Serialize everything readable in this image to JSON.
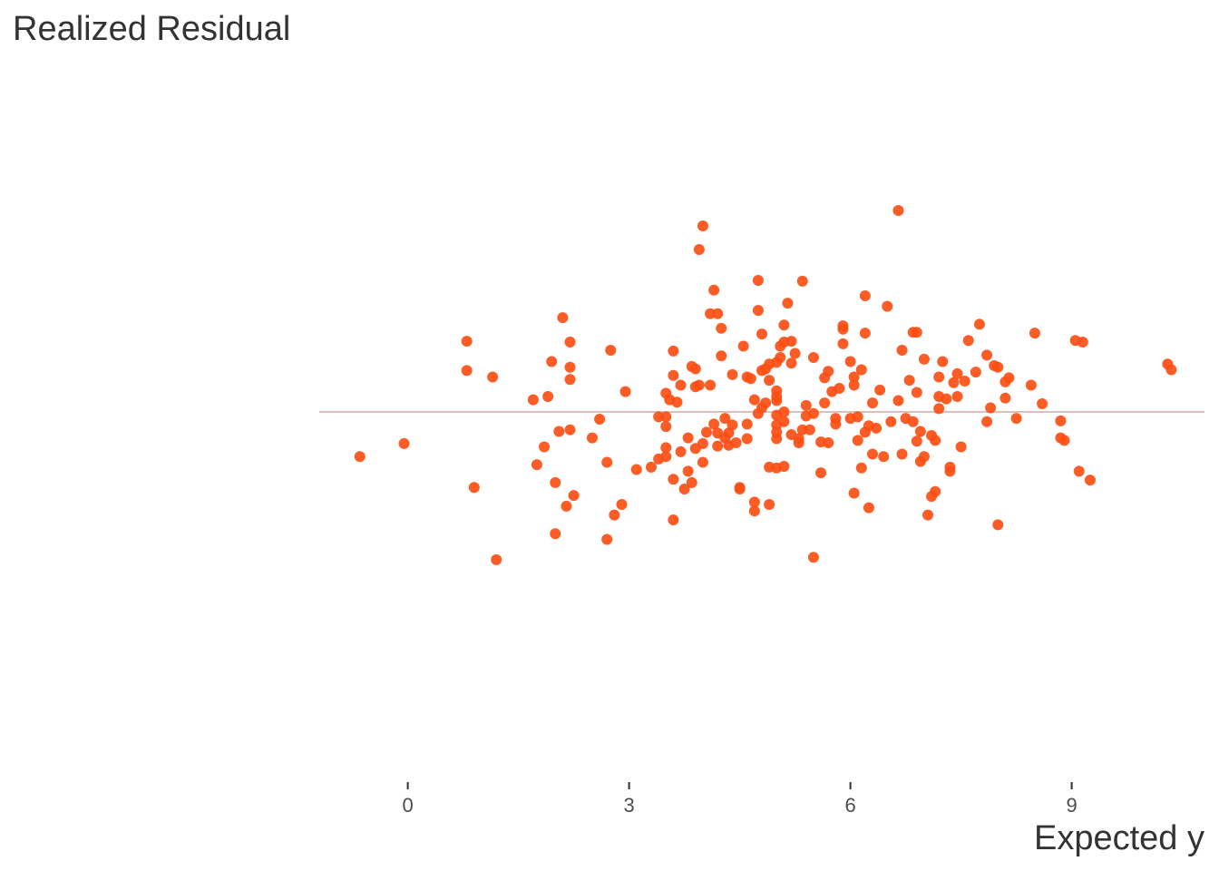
{
  "chart_data": {
    "type": "scatter",
    "title": "Realized Residual",
    "xlabel": "Expected y",
    "ylabel": "Realized Residual",
    "x_ticks": [
      0,
      3,
      6,
      9
    ],
    "xlim": [
      -1.2,
      10.8
    ],
    "ylim": [
      -4.0,
      4.0
    ],
    "y_ticks_visible": false,
    "grid": false,
    "reference_line": {
      "y": 0,
      "color": "#dbbfbf"
    },
    "point_color": "#fc4e14",
    "points": [
      [
        -0.65,
        -0.55
      ],
      [
        -0.05,
        -0.39
      ],
      [
        0.8,
        0.87
      ],
      [
        0.8,
        0.51
      ],
      [
        0.9,
        -0.93
      ],
      [
        1.15,
        0.43
      ],
      [
        1.2,
        -1.82
      ],
      [
        1.7,
        0.15
      ],
      [
        1.75,
        -0.65
      ],
      [
        1.85,
        -0.43
      ],
      [
        1.9,
        0.19
      ],
      [
        1.95,
        0.62
      ],
      [
        2.0,
        -0.87
      ],
      [
        2.0,
        -1.5
      ],
      [
        2.05,
        -0.24
      ],
      [
        2.1,
        1.16
      ],
      [
        2.15,
        -1.16
      ],
      [
        2.2,
        0.86
      ],
      [
        2.2,
        0.55
      ],
      [
        2.2,
        0.4
      ],
      [
        2.2,
        -0.22
      ],
      [
        2.25,
        -1.03
      ],
      [
        2.5,
        -0.32
      ],
      [
        2.6,
        -0.09
      ],
      [
        2.7,
        -1.57
      ],
      [
        2.7,
        -0.62
      ],
      [
        2.75,
        0.76
      ],
      [
        2.8,
        -1.27
      ],
      [
        2.9,
        -1.14
      ],
      [
        2.95,
        0.25
      ],
      [
        3.1,
        -0.71
      ],
      [
        3.3,
        -0.68
      ],
      [
        3.4,
        -0.58
      ],
      [
        3.4,
        -0.06
      ],
      [
        3.5,
        0.23
      ],
      [
        3.5,
        -0.06
      ],
      [
        3.5,
        -0.18
      ],
      [
        3.5,
        -0.44
      ],
      [
        3.5,
        -0.55
      ],
      [
        3.55,
        0.15
      ],
      [
        3.6,
        0.75
      ],
      [
        3.6,
        -0.83
      ],
      [
        3.6,
        0.45
      ],
      [
        3.6,
        -1.33
      ],
      [
        3.65,
        0.12
      ],
      [
        3.7,
        0.33
      ],
      [
        3.7,
        -0.49
      ],
      [
        3.75,
        -0.95
      ],
      [
        3.8,
        -0.32
      ],
      [
        3.8,
        -0.73
      ],
      [
        3.85,
        0.56
      ],
      [
        3.85,
        -0.87
      ],
      [
        3.9,
        0.31
      ],
      [
        3.9,
        0.53
      ],
      [
        3.9,
        -0.45
      ],
      [
        3.95,
        2.0
      ],
      [
        3.95,
        0.33
      ],
      [
        4.0,
        -0.39
      ],
      [
        4.0,
        -0.62
      ],
      [
        4.0,
        2.29
      ],
      [
        4.05,
        -0.25
      ],
      [
        4.1,
        0.33
      ],
      [
        4.1,
        1.21
      ],
      [
        4.15,
        -0.15
      ],
      [
        4.15,
        1.5
      ],
      [
        4.2,
        -0.42
      ],
      [
        4.2,
        1.21
      ],
      [
        4.2,
        -0.26
      ],
      [
        4.25,
        1.03
      ],
      [
        4.25,
        0.69
      ],
      [
        4.3,
        -0.08
      ],
      [
        4.3,
        -0.32
      ],
      [
        4.35,
        -0.26
      ],
      [
        4.35,
        -0.41
      ],
      [
        4.4,
        -0.16
      ],
      [
        4.4,
        0.46
      ],
      [
        4.45,
        -0.38
      ],
      [
        4.5,
        -0.93
      ],
      [
        4.5,
        -0.95
      ],
      [
        4.55,
        0.81
      ],
      [
        4.6,
        -0.15
      ],
      [
        4.6,
        -0.33
      ],
      [
        4.6,
        0.43
      ],
      [
        4.65,
        0.41
      ],
      [
        4.7,
        0.15
      ],
      [
        4.75,
        -0.02
      ],
      [
        4.7,
        -1.11
      ],
      [
        4.7,
        -1.22
      ],
      [
        4.75,
        1.25
      ],
      [
        4.75,
        1.62
      ],
      [
        4.8,
        0.96
      ],
      [
        4.8,
        0.51
      ],
      [
        4.8,
        0.05
      ],
      [
        4.85,
        0.53
      ],
      [
        4.85,
        0.11
      ],
      [
        4.9,
        0.59
      ],
      [
        4.9,
        0.39
      ],
      [
        4.9,
        -0.68
      ],
      [
        4.9,
        -1.14
      ],
      [
        5.0,
        0.61
      ],
      [
        5.0,
        0.14
      ],
      [
        5.0,
        0.26
      ],
      [
        5.0,
        0.19
      ],
      [
        5.0,
        -0.04
      ],
      [
        5.0,
        -0.16
      ],
      [
        5.0,
        -0.25
      ],
      [
        5.0,
        -0.33
      ],
      [
        5.0,
        -0.69
      ],
      [
        5.05,
        0.67
      ],
      [
        5.05,
        0.81
      ],
      [
        5.1,
        0.86
      ],
      [
        5.1,
        0.0
      ],
      [
        5.1,
        -0.12
      ],
      [
        5.1,
        -0.67
      ],
      [
        5.1,
        1.07
      ],
      [
        5.15,
        1.34
      ],
      [
        5.2,
        0.87
      ],
      [
        5.2,
        0.6
      ],
      [
        5.2,
        -0.28
      ],
      [
        5.25,
        0.72
      ],
      [
        5.3,
        -0.33
      ],
      [
        5.3,
        -0.38
      ],
      [
        5.35,
        -0.22
      ],
      [
        5.35,
        1.61
      ],
      [
        5.4,
        0.08
      ],
      [
        5.4,
        -0.05
      ],
      [
        5.45,
        -0.22
      ],
      [
        5.5,
        0.67
      ],
      [
        5.5,
        -0.02
      ],
      [
        5.5,
        -1.79
      ],
      [
        5.6,
        -0.37
      ],
      [
        5.6,
        -0.75
      ],
      [
        5.65,
        0.42
      ],
      [
        5.65,
        0.11
      ],
      [
        5.7,
        0.5
      ],
      [
        5.7,
        -0.38
      ],
      [
        5.75,
        0.25
      ],
      [
        5.8,
        -0.08
      ],
      [
        5.8,
        -0.15
      ],
      [
        5.85,
        0.29
      ],
      [
        5.9,
        1.06
      ],
      [
        5.9,
        1.02
      ],
      [
        5.9,
        0.84
      ],
      [
        6.0,
        0.62
      ],
      [
        6.0,
        -0.08
      ],
      [
        6.05,
        0.33
      ],
      [
        6.05,
        0.43
      ],
      [
        6.05,
        -1.0
      ],
      [
        6.1,
        -0.06
      ],
      [
        6.1,
        -0.35
      ],
      [
        6.15,
        0.52
      ],
      [
        6.15,
        -0.69
      ],
      [
        6.2,
        -0.25
      ],
      [
        6.2,
        0.97
      ],
      [
        6.2,
        1.43
      ],
      [
        6.25,
        -0.17
      ],
      [
        6.25,
        -1.18
      ],
      [
        6.3,
        -0.52
      ],
      [
        6.3,
        0.11
      ],
      [
        6.35,
        -0.2
      ],
      [
        6.4,
        0.27
      ],
      [
        6.45,
        -0.55
      ],
      [
        6.5,
        1.3
      ],
      [
        6.55,
        -0.12
      ],
      [
        6.65,
        0.14
      ],
      [
        6.65,
        2.48
      ],
      [
        6.7,
        -0.52
      ],
      [
        6.7,
        0.76
      ],
      [
        6.75,
        -0.08
      ],
      [
        6.8,
        0.39
      ],
      [
        6.85,
        0.98
      ],
      [
        6.85,
        -0.12
      ],
      [
        6.9,
        0.98
      ],
      [
        6.9,
        0.24
      ],
      [
        6.9,
        -0.36
      ],
      [
        6.95,
        -0.24
      ],
      [
        6.95,
        -0.61
      ],
      [
        7.0,
        0.65
      ],
      [
        7.0,
        -0.55
      ],
      [
        7.05,
        -1.27
      ],
      [
        7.1,
        -0.29
      ],
      [
        7.1,
        -1.04
      ],
      [
        7.15,
        -0.98
      ],
      [
        7.15,
        -0.35
      ],
      [
        7.2,
        0.04
      ],
      [
        7.2,
        0.43
      ],
      [
        7.2,
        0.19
      ],
      [
        7.25,
        0.62
      ],
      [
        7.3,
        0.16
      ],
      [
        7.35,
        -0.73
      ],
      [
        7.35,
        -0.68
      ],
      [
        7.4,
        0.36
      ],
      [
        7.45,
        0.47
      ],
      [
        7.45,
        0.19
      ],
      [
        7.5,
        -0.43
      ],
      [
        7.55,
        0.38
      ],
      [
        7.6,
        0.88
      ],
      [
        7.7,
        0.49
      ],
      [
        7.75,
        1.08
      ],
      [
        7.85,
        -0.12
      ],
      [
        7.85,
        0.7
      ],
      [
        7.9,
        0.05
      ],
      [
        7.95,
        0.57
      ],
      [
        8.0,
        -1.39
      ],
      [
        8.0,
        0.55
      ],
      [
        8.1,
        0.17
      ],
      [
        8.1,
        0.37
      ],
      [
        8.15,
        0.42
      ],
      [
        8.25,
        -0.08
      ],
      [
        8.45,
        0.33
      ],
      [
        8.5,
        0.97
      ],
      [
        8.6,
        0.1
      ],
      [
        8.85,
        -0.11
      ],
      [
        8.85,
        -0.32
      ],
      [
        8.9,
        -0.35
      ],
      [
        9.05,
        0.88
      ],
      [
        9.1,
        -0.73
      ],
      [
        9.15,
        0.86
      ],
      [
        9.25,
        -0.84
      ],
      [
        10.3,
        0.59
      ],
      [
        10.35,
        0.52
      ]
    ]
  }
}
